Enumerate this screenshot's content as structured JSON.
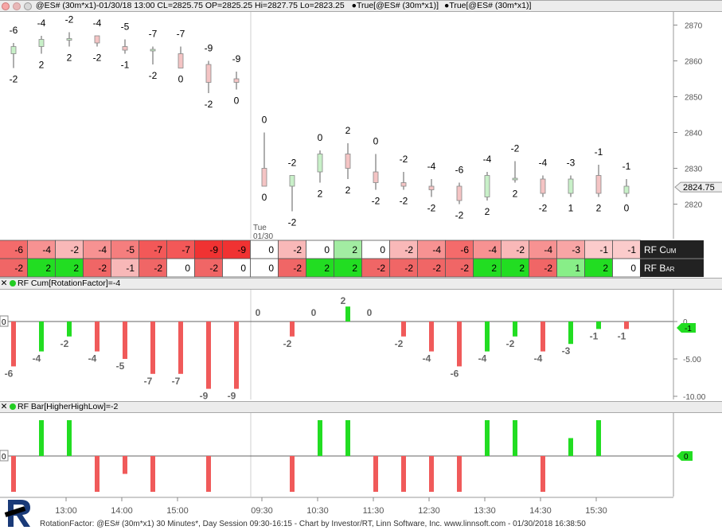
{
  "header": {
    "icons": [
      "close-icon",
      "minimize-icon",
      "maximize-icon"
    ],
    "title": "@ES# (30m*x1)-01/30/18 13:00 CL=2825.75 OP=2825.25 Hi=2827.75 Lo=2823.25",
    "study1": "True[@ES# (30m*x1)]",
    "study2": "True[@ES# (30m*x1)]"
  },
  "price_axis": {
    "ticks": [
      2870,
      2860,
      2850,
      2840,
      2830,
      2820
    ],
    "last_price": "2824.75"
  },
  "day_marker": {
    "day": "Tue",
    "date": "01/30"
  },
  "chart_data": {
    "type": "candlestick",
    "bars": [
      {
        "o": 2862,
        "h": 2865,
        "l": 2858,
        "c": 2864,
        "cum": -6,
        "bar": -2
      },
      {
        "o": 2864,
        "h": 2867,
        "l": 2862,
        "c": 2866,
        "cum": -4,
        "bar": 2
      },
      {
        "o": 2866,
        "h": 2868,
        "l": 2864,
        "c": 2866,
        "cum": -2,
        "bar": 2
      },
      {
        "o": 2867,
        "h": 2867,
        "l": 2864,
        "c": 2865,
        "cum": -4,
        "bar": -2
      },
      {
        "o": 2864,
        "h": 2866,
        "l": 2862,
        "c": 2863,
        "cum": -5,
        "bar": -1
      },
      {
        "o": 2863,
        "h": 2864,
        "l": 2859,
        "c": 2863,
        "cum": -7,
        "bar": -2
      },
      {
        "o": 2862,
        "h": 2864,
        "l": 2858,
        "c": 2858,
        "cum": -7,
        "bar": 0
      },
      {
        "o": 2859,
        "h": 2860,
        "l": 2851,
        "c": 2854,
        "cum": -9,
        "bar": -2
      },
      {
        "o": 2855,
        "h": 2857,
        "l": 2852,
        "c": 2854,
        "cum": -9,
        "bar": 0
      },
      {
        "o": 2830,
        "h": 2840,
        "l": 2825,
        "c": 2825,
        "cum": 0,
        "bar": 0
      },
      {
        "o": 2825,
        "h": 2828,
        "l": 2818,
        "c": 2828,
        "cum": -2,
        "bar": -2
      },
      {
        "o": 2829,
        "h": 2835,
        "l": 2826,
        "c": 2834,
        "cum": 0,
        "bar": 2
      },
      {
        "o": 2834,
        "h": 2837,
        "l": 2827,
        "c": 2830,
        "cum": 2,
        "bar": 2
      },
      {
        "o": 2829,
        "h": 2834,
        "l": 2824,
        "c": 2826,
        "cum": 0,
        "bar": -2
      },
      {
        "o": 2826,
        "h": 2829,
        "l": 2824,
        "c": 2825,
        "cum": -2,
        "bar": -2
      },
      {
        "o": 2825,
        "h": 2827,
        "l": 2822,
        "c": 2824,
        "cum": -4,
        "bar": -2
      },
      {
        "o": 2825,
        "h": 2826,
        "l": 2820,
        "c": 2821,
        "cum": -6,
        "bar": -2
      },
      {
        "o": 2822,
        "h": 2829,
        "l": 2821,
        "c": 2828,
        "cum": -4,
        "bar": 2
      },
      {
        "o": 2827,
        "h": 2832,
        "l": 2826,
        "c": 2827,
        "cum": -2,
        "bar": 2
      },
      {
        "o": 2827,
        "h": 2828,
        "l": 2822,
        "c": 2823,
        "cum": -4,
        "bar": -2
      },
      {
        "o": 2823,
        "h": 2828,
        "l": 2822,
        "c": 2827,
        "cum": -3,
        "bar": 1
      },
      {
        "o": 2828,
        "h": 2831,
        "l": 2822,
        "c": 2823,
        "cum": -1,
        "bar": 2
      },
      {
        "o": 2823,
        "h": 2827,
        "l": 2822,
        "c": 2825,
        "cum": -1,
        "bar": 0
      }
    ]
  },
  "grid": {
    "row1_label": "RF Cum",
    "row2_label": "RF Bar"
  },
  "rf_cum_panel": {
    "title": "RF Cum[RotationFactor]=-4",
    "zero_label": "0",
    "value_tag": "-1",
    "axis_ticks": [
      "0",
      "-5.00",
      "-10.00"
    ]
  },
  "rf_bar_panel": {
    "title": "RF Bar[HigherHighLow]=-2",
    "zero_label": "0",
    "value_tag": "0"
  },
  "time_axis": {
    "labels": [
      "13:00",
      "14:00",
      "15:00",
      "09:30",
      "10:30",
      "11:30",
      "12:30",
      "13:30",
      "14:30",
      "15:30"
    ]
  },
  "footer": {
    "text": "RotationFactor: @ES# (30m*x1) 30 Minutes*, Day Session 09:30-16:15 - Chart by Investor/RT, Linn Software, Inc. www.linnsoft.com - 01/30/2018 16:38:50"
  },
  "colors": {
    "up_body": "#c8f0c8",
    "down_body": "#f4c4c4",
    "green": "#22dd22",
    "red": "#f05a5a",
    "axis_bg": "#ffffff"
  }
}
